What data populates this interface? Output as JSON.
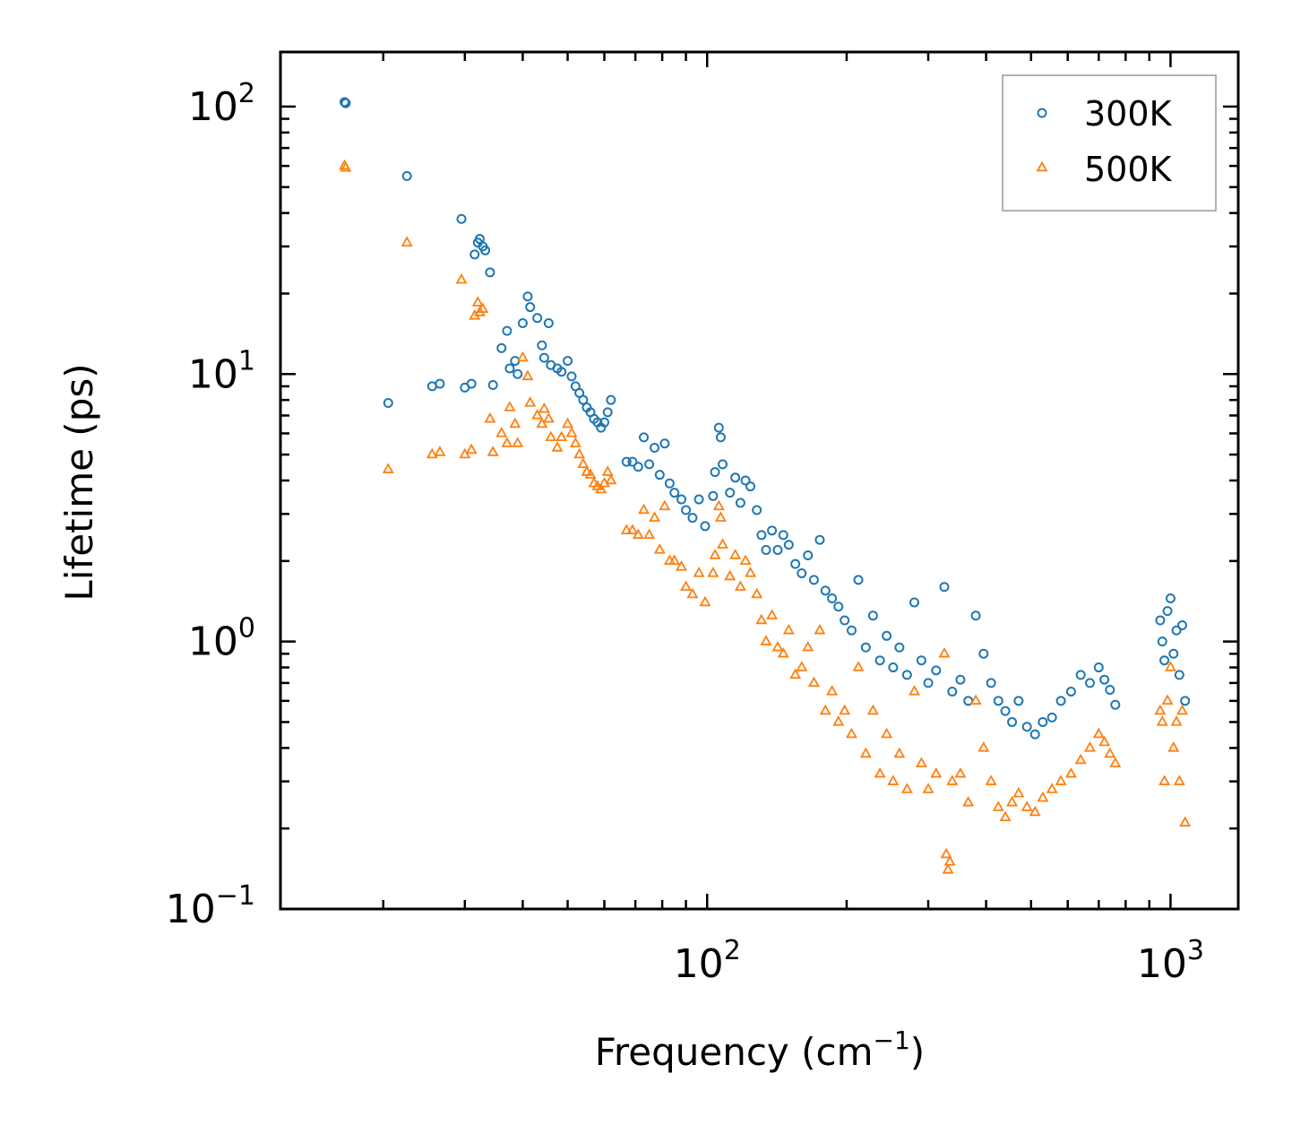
{
  "chart_data": {
    "type": "scatter",
    "title": "",
    "xlabel": "Frequency (cm",
    "xlabel_sup": "−1",
    "xlabel_end": ")",
    "ylabel": "Lifetime (ps)",
    "xscale": "log",
    "yscale": "log",
    "xlim": [
      12,
      1400
    ],
    "ylim": [
      0.1,
      160
    ],
    "x_ticks": [
      {
        "value": 100,
        "base": "10",
        "exp": "2"
      },
      {
        "value": 1000,
        "base": "10",
        "exp": "3"
      }
    ],
    "y_ticks": [
      {
        "value": 0.1,
        "base": "10",
        "exp": "−1"
      },
      {
        "value": 1,
        "base": "10",
        "exp": "0"
      },
      {
        "value": 10,
        "base": "10",
        "exp": "1"
      },
      {
        "value": 100,
        "base": "10",
        "exp": "2"
      }
    ],
    "legend_position": "top-right",
    "series": [
      {
        "name": "300K",
        "marker": "circle",
        "color": "#1f77b4",
        "points": [
          [
            16.5,
            104
          ],
          [
            16.6,
            103
          ],
          [
            20.5,
            7.8
          ],
          [
            22.5,
            55
          ],
          [
            25.5,
            9.0
          ],
          [
            26.5,
            9.2
          ],
          [
            29.5,
            38
          ],
          [
            30,
            8.9
          ],
          [
            31,
            9.2
          ],
          [
            31.5,
            28
          ],
          [
            32,
            31
          ],
          [
            32.3,
            32
          ],
          [
            32.8,
            30
          ],
          [
            33.2,
            29
          ],
          [
            34,
            24
          ],
          [
            34.5,
            9.1
          ],
          [
            36,
            12.5
          ],
          [
            37,
            14.5
          ],
          [
            37.5,
            10.5
          ],
          [
            38.5,
            11.2
          ],
          [
            39,
            10.0
          ],
          [
            40,
            15.5
          ],
          [
            41,
            19.5
          ],
          [
            41.5,
            17.8
          ],
          [
            43,
            16.2
          ],
          [
            44,
            12.8
          ],
          [
            44.5,
            11.5
          ],
          [
            45.5,
            15.5
          ],
          [
            46,
            10.8
          ],
          [
            47.5,
            10.5
          ],
          [
            48.5,
            10.2
          ],
          [
            50,
            11.2
          ],
          [
            51,
            9.8
          ],
          [
            52,
            9.0
          ],
          [
            53,
            8.5
          ],
          [
            54,
            8.0
          ],
          [
            55,
            7.5
          ],
          [
            56,
            7.2
          ],
          [
            57,
            6.8
          ],
          [
            58,
            6.6
          ],
          [
            59,
            6.3
          ],
          [
            60,
            6.6
          ],
          [
            61,
            7.2
          ],
          [
            62,
            8.0
          ],
          [
            67,
            4.7
          ],
          [
            69,
            4.7
          ],
          [
            71,
            4.5
          ],
          [
            73,
            5.8
          ],
          [
            75,
            4.6
          ],
          [
            77,
            5.3
          ],
          [
            79,
            4.2
          ],
          [
            81,
            5.5
          ],
          [
            83,
            3.9
          ],
          [
            85,
            3.6
          ],
          [
            88,
            3.4
          ],
          [
            90,
            3.1
          ],
          [
            93,
            2.9
          ],
          [
            96,
            3.4
          ],
          [
            99,
            2.7
          ],
          [
            103,
            3.5
          ],
          [
            104,
            4.3
          ],
          [
            106,
            6.3
          ],
          [
            107,
            5.8
          ],
          [
            108,
            4.6
          ],
          [
            112,
            3.6
          ],
          [
            115,
            4.1
          ],
          [
            118,
            3.3
          ],
          [
            121,
            4.0
          ],
          [
            124,
            3.8
          ],
          [
            128,
            3.1
          ],
          [
            131,
            2.5
          ],
          [
            134,
            2.2
          ],
          [
            138,
            2.6
          ],
          [
            142,
            2.2
          ],
          [
            146,
            2.5
          ],
          [
            150,
            2.3
          ],
          [
            155,
            1.95
          ],
          [
            160,
            1.8
          ],
          [
            165,
            2.1
          ],
          [
            170,
            1.7
          ],
          [
            175,
            2.4
          ],
          [
            180,
            1.55
          ],
          [
            186,
            1.45
          ],
          [
            192,
            1.35
          ],
          [
            198,
            1.2
          ],
          [
            205,
            1.1
          ],
          [
            212,
            1.7
          ],
          [
            220,
            0.95
          ],
          [
            228,
            1.25
          ],
          [
            236,
            0.85
          ],
          [
            244,
            1.05
          ],
          [
            252,
            0.8
          ],
          [
            260,
            0.95
          ],
          [
            270,
            0.75
          ],
          [
            280,
            1.4
          ],
          [
            290,
            0.85
          ],
          [
            300,
            0.7
          ],
          [
            312,
            0.78
          ],
          [
            325,
            1.6
          ],
          [
            338,
            0.65
          ],
          [
            352,
            0.72
          ],
          [
            366,
            0.6
          ],
          [
            380,
            1.25
          ],
          [
            395,
            0.9
          ],
          [
            410,
            0.7
          ],
          [
            425,
            0.6
          ],
          [
            440,
            0.55
          ],
          [
            455,
            0.5
          ],
          [
            470,
            0.6
          ],
          [
            490,
            0.48
          ],
          [
            510,
            0.45
          ],
          [
            530,
            0.5
          ],
          [
            555,
            0.52
          ],
          [
            580,
            0.6
          ],
          [
            610,
            0.65
          ],
          [
            640,
            0.75
          ],
          [
            670,
            0.7
          ],
          [
            700,
            0.8
          ],
          [
            720,
            0.72
          ],
          [
            740,
            0.66
          ],
          [
            760,
            0.58
          ],
          [
            950,
            1.2
          ],
          [
            960,
            1.0
          ],
          [
            970,
            0.85
          ],
          [
            985,
            1.3
          ],
          [
            1000,
            1.45
          ],
          [
            1015,
            0.9
          ],
          [
            1030,
            1.1
          ],
          [
            1045,
            0.75
          ],
          [
            1060,
            1.15
          ],
          [
            1075,
            0.6
          ]
        ]
      },
      {
        "name": "500K",
        "marker": "triangle",
        "color": "#ff7f0e",
        "points": [
          [
            16.5,
            60
          ],
          [
            16.6,
            59
          ],
          [
            20.5,
            4.4
          ],
          [
            22.5,
            31
          ],
          [
            25.5,
            5.0
          ],
          [
            26.5,
            5.1
          ],
          [
            29.5,
            22.5
          ],
          [
            30,
            5.0
          ],
          [
            31,
            5.2
          ],
          [
            31.5,
            16.5
          ],
          [
            32,
            18.5
          ],
          [
            32.3,
            17.0
          ],
          [
            32.8,
            17.5
          ],
          [
            34,
            6.8
          ],
          [
            34.5,
            5.1
          ],
          [
            36,
            6.0
          ],
          [
            37,
            5.5
          ],
          [
            37.5,
            7.5
          ],
          [
            38.5,
            6.5
          ],
          [
            39,
            5.5
          ],
          [
            40,
            11.5
          ],
          [
            41,
            9.8
          ],
          [
            41.5,
            7.8
          ],
          [
            43,
            7.0
          ],
          [
            44,
            6.5
          ],
          [
            44.5,
            7.4
          ],
          [
            45.5,
            6.8
          ],
          [
            46,
            5.8
          ],
          [
            47.5,
            5.3
          ],
          [
            48.5,
            5.8
          ],
          [
            50,
            6.5
          ],
          [
            51,
            6.0
          ],
          [
            52,
            5.5
          ],
          [
            53,
            5.0
          ],
          [
            54,
            4.6
          ],
          [
            55,
            4.3
          ],
          [
            56,
            4.2
          ],
          [
            57,
            3.9
          ],
          [
            58,
            3.8
          ],
          [
            59,
            3.7
          ],
          [
            60,
            3.9
          ],
          [
            61,
            4.3
          ],
          [
            62,
            4.0
          ],
          [
            67,
            2.6
          ],
          [
            69,
            2.6
          ],
          [
            71,
            2.5
          ],
          [
            73,
            3.1
          ],
          [
            75,
            2.5
          ],
          [
            77,
            2.9
          ],
          [
            79,
            2.2
          ],
          [
            81,
            3.2
          ],
          [
            83,
            2.0
          ],
          [
            85,
            2.0
          ],
          [
            88,
            1.9
          ],
          [
            90,
            1.6
          ],
          [
            93,
            1.5
          ],
          [
            96,
            1.8
          ],
          [
            99,
            1.4
          ],
          [
            103,
            1.8
          ],
          [
            104,
            2.1
          ],
          [
            106,
            3.2
          ],
          [
            107,
            2.9
          ],
          [
            108,
            2.3
          ],
          [
            112,
            1.75
          ],
          [
            115,
            2.1
          ],
          [
            118,
            1.6
          ],
          [
            121,
            2.0
          ],
          [
            124,
            1.8
          ],
          [
            128,
            1.5
          ],
          [
            131,
            1.2
          ],
          [
            134,
            1.0
          ],
          [
            138,
            1.25
          ],
          [
            142,
            0.95
          ],
          [
            146,
            0.9
          ],
          [
            150,
            1.1
          ],
          [
            155,
            0.75
          ],
          [
            160,
            0.8
          ],
          [
            165,
            0.95
          ],
          [
            170,
            0.7
          ],
          [
            175,
            1.1
          ],
          [
            180,
            0.55
          ],
          [
            186,
            0.65
          ],
          [
            192,
            0.5
          ],
          [
            198,
            0.55
          ],
          [
            205,
            0.45
          ],
          [
            212,
            0.8
          ],
          [
            220,
            0.38
          ],
          [
            228,
            0.55
          ],
          [
            236,
            0.32
          ],
          [
            244,
            0.45
          ],
          [
            252,
            0.3
          ],
          [
            260,
            0.38
          ],
          [
            270,
            0.28
          ],
          [
            280,
            0.65
          ],
          [
            290,
            0.35
          ],
          [
            300,
            0.28
          ],
          [
            312,
            0.32
          ],
          [
            325,
            0.9
          ],
          [
            328,
            0.16
          ],
          [
            331,
            0.14
          ],
          [
            334,
            0.15
          ],
          [
            338,
            0.3
          ],
          [
            352,
            0.32
          ],
          [
            366,
            0.25
          ],
          [
            380,
            0.6
          ],
          [
            395,
            0.4
          ],
          [
            410,
            0.3
          ],
          [
            425,
            0.24
          ],
          [
            440,
            0.22
          ],
          [
            455,
            0.25
          ],
          [
            470,
            0.27
          ],
          [
            490,
            0.24
          ],
          [
            510,
            0.23
          ],
          [
            530,
            0.26
          ],
          [
            555,
            0.28
          ],
          [
            580,
            0.3
          ],
          [
            610,
            0.32
          ],
          [
            640,
            0.36
          ],
          [
            670,
            0.4
          ],
          [
            700,
            0.45
          ],
          [
            720,
            0.42
          ],
          [
            740,
            0.38
          ],
          [
            760,
            0.35
          ],
          [
            950,
            0.55
          ],
          [
            960,
            0.5
          ],
          [
            970,
            0.3
          ],
          [
            985,
            0.6
          ],
          [
            1000,
            0.8
          ],
          [
            1015,
            0.4
          ],
          [
            1030,
            0.5
          ],
          [
            1045,
            0.3
          ],
          [
            1060,
            0.55
          ],
          [
            1075,
            0.21
          ]
        ]
      }
    ]
  }
}
